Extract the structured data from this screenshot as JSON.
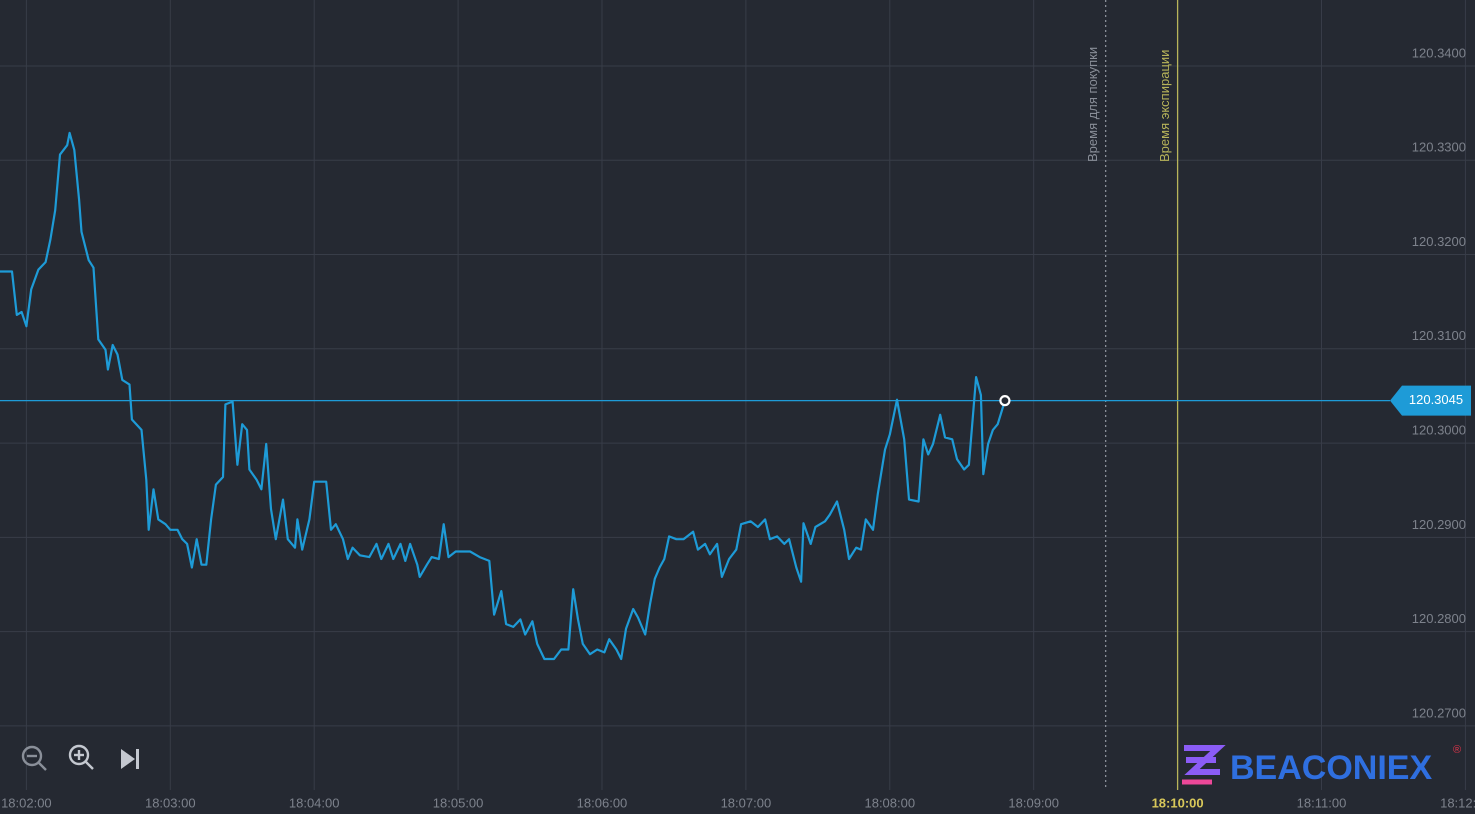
{
  "chart_data": {
    "type": "line",
    "x": [
      "18:01:49",
      "18:01:54",
      "18:01:56",
      "18:01:58",
      "18:02:00",
      "18:02:02",
      "18:02:05",
      "18:02:08",
      "18:02:10",
      "18:02:12",
      "18:02:14",
      "18:02:17",
      "18:02:18",
      "18:02:20",
      "18:02:22",
      "18:02:23",
      "18:02:26",
      "18:02:28",
      "18:02:30",
      "18:02:33",
      "18:02:34",
      "18:02:36",
      "18:02:38",
      "18:02:40",
      "18:02:43",
      "18:02:44",
      "18:02:48",
      "18:02:50",
      "18:02:51",
      "18:02:53",
      "18:02:55",
      "18:02:58",
      "18:03:00",
      "18:03:03",
      "18:03:05",
      "18:03:07",
      "18:03:09",
      "18:03:11",
      "18:03:13",
      "18:03:15",
      "18:03:17",
      "18:03:19",
      "18:03:22",
      "18:03:23",
      "18:03:26",
      "18:03:28",
      "18:03:30",
      "18:03:32",
      "18:03:33",
      "18:03:36",
      "18:03:38",
      "18:03:40",
      "18:03:42",
      "18:03:44",
      "18:03:47",
      "18:03:49",
      "18:03:52",
      "18:03:53",
      "18:03:55",
      "18:03:58",
      "18:04:00",
      "18:04:05",
      "18:04:07",
      "18:04:09",
      "18:04:12",
      "18:04:14",
      "18:04:16",
      "18:04:19",
      "18:04:23",
      "18:04:26",
      "18:04:28",
      "18:04:31",
      "18:04:33",
      "18:04:36",
      "18:04:38",
      "18:04:40",
      "18:04:43",
      "18:04:44",
      "18:04:47",
      "18:04:49",
      "18:04:52",
      "18:04:54",
      "18:04:56",
      "18:04:59",
      "18:05:05",
      "18:05:09",
      "18:05:13",
      "18:05:15",
      "18:05:18",
      "18:05:20",
      "18:05:23",
      "18:05:26",
      "18:05:28",
      "18:05:31",
      "18:05:33",
      "18:05:36",
      "18:05:40",
      "18:05:43",
      "18:05:46",
      "18:05:48",
      "18:05:50",
      "18:05:52",
      "18:05:55",
      "18:05:58",
      "18:06:01",
      "18:06:03",
      "18:06:06",
      "18:06:08",
      "18:06:10",
      "18:06:13",
      "18:06:15",
      "18:06:18",
      "18:06:20",
      "18:06:22",
      "18:06:24",
      "18:06:26",
      "18:06:28",
      "18:06:31",
      "18:06:34",
      "18:06:38",
      "18:06:40",
      "18:06:43",
      "18:06:45",
      "18:06:48",
      "18:06:50",
      "18:06:53",
      "18:06:56",
      "18:06:58",
      "18:07:02",
      "18:07:05",
      "18:07:08",
      "18:07:10",
      "18:07:13",
      "18:07:16",
      "18:07:18",
      "18:07:21",
      "18:07:23",
      "18:07:24",
      "18:07:27",
      "18:07:29",
      "18:07:33",
      "18:07:35",
      "18:07:38",
      "18:07:41",
      "18:07:43",
      "18:07:46",
      "18:07:48",
      "18:07:50",
      "18:07:53",
      "18:07:55",
      "18:07:58",
      "18:08:00",
      "18:08:03",
      "18:08:06",
      "18:08:08",
      "18:08:12",
      "18:08:14",
      "18:08:16",
      "18:08:18",
      "18:08:21",
      "18:08:23",
      "18:08:26",
      "18:08:28",
      "18:08:31",
      "18:08:33",
      "18:08:36",
      "18:08:38",
      "18:08:39",
      "18:08:41",
      "18:08:43",
      "18:08:45",
      "18:08:48"
    ],
    "values": [
      120.3182,
      120.3182,
      120.3136,
      120.3139,
      120.3124,
      120.3163,
      120.3184,
      120.3192,
      120.3216,
      120.3247,
      120.3306,
      120.3316,
      120.3329,
      120.3311,
      120.3258,
      120.3224,
      120.3194,
      120.3186,
      120.311,
      120.3099,
      120.3078,
      120.3104,
      120.3094,
      120.3067,
      120.3062,
      120.3025,
      120.3014,
      120.2961,
      120.2908,
      120.2951,
      120.2919,
      120.2914,
      120.2908,
      120.2908,
      120.2898,
      120.2893,
      120.2868,
      120.2898,
      120.2871,
      120.2871,
      120.2919,
      120.2956,
      120.2964,
      120.3041,
      120.3044,
      120.2977,
      120.302,
      120.3014,
      120.2972,
      120.2961,
      120.2951,
      120.2999,
      120.293,
      120.2898,
      120.294,
      120.2898,
      120.2889,
      120.2919,
      120.2887,
      120.2919,
      120.2959,
      120.2959,
      120.2908,
      120.2914,
      120.2898,
      120.2877,
      120.2889,
      120.2881,
      120.2879,
      120.2893,
      120.2877,
      120.2893,
      120.2877,
      120.2893,
      120.2875,
      120.2893,
      120.2871,
      120.2858,
      120.2871,
      120.2879,
      120.2877,
      120.2914,
      120.2879,
      120.2885,
      120.2885,
      120.2879,
      120.2875,
      120.2818,
      120.2843,
      120.2808,
      120.2805,
      120.2813,
      120.2797,
      120.2811,
      120.2787,
      120.2771,
      120.2771,
      120.2781,
      120.2781,
      120.2845,
      120.2813,
      120.2787,
      120.2776,
      120.2781,
      120.2778,
      120.2792,
      120.2781,
      120.2771,
      120.2803,
      120.2824,
      120.2815,
      120.2797,
      120.2829,
      120.2856,
      120.2868,
      120.2877,
      120.2901,
      120.2898,
      120.2898,
      120.2906,
      120.2887,
      120.2893,
      120.2882,
      120.2893,
      120.2858,
      120.2877,
      120.2887,
      120.2914,
      120.2917,
      120.2911,
      120.2919,
      120.2898,
      120.2901,
      120.2893,
      120.2898,
      120.2868,
      120.2853,
      120.2915,
      120.2893,
      120.2911,
      120.2917,
      120.2924,
      120.2938,
      120.2908,
      120.2877,
      120.2889,
      120.2887,
      120.2919,
      120.2908,
      120.2946,
      120.2993,
      120.3009,
      120.3046,
      120.3004,
      120.294,
      120.2938,
      120.3004,
      120.2988,
      120.2999,
      120.303,
      120.3006,
      120.3004,
      120.2983,
      120.2972,
      120.2977,
      120.307,
      120.3051,
      120.2967,
      120.2999,
      120.3014,
      120.302,
      120.3045
    ],
    "color": "#1e9bd7",
    "xlim": [
      "18:01:49",
      "18:12:04"
    ],
    "xticks": [
      "18:02:00",
      "18:03:00",
      "18:04:00",
      "18:05:00",
      "18:06:00",
      "18:07:00",
      "18:08:00",
      "18:09:00",
      "18:10:00",
      "18:11:00",
      "18:12:00"
    ],
    "ylim": [
      120.2632,
      120.347
    ],
    "yticks": [
      {
        "value": 120.27,
        "label": "120.2700"
      },
      {
        "value": 120.28,
        "label": "120.2800"
      },
      {
        "value": 120.29,
        "label": "120.2900"
      },
      {
        "value": 120.3,
        "label": "120.3000"
      },
      {
        "value": 120.31,
        "label": "120.3100"
      },
      {
        "value": 120.32,
        "label": "120.3200"
      },
      {
        "value": 120.33,
        "label": "120.3300"
      },
      {
        "value": 120.34,
        "label": "120.3400"
      }
    ],
    "grid": true,
    "current_price": 120.3045,
    "markers": [
      {
        "x": "18:09:30",
        "label": "Время для покупки",
        "color": "#8a8f99",
        "style": "dotted"
      },
      {
        "x": "18:10:00",
        "label": "Время экспирации",
        "color": "#b8b45a",
        "style": "solid"
      }
    ],
    "logo": "BEACONIEX",
    "logo_mark": "®"
  }
}
